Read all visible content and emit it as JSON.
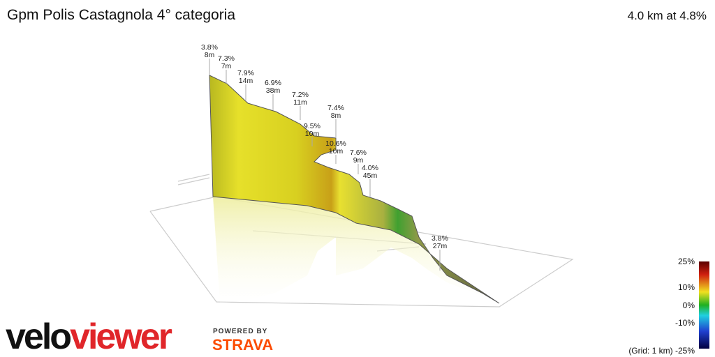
{
  "header": {
    "title": "Gpm Polis Castagnola  4° categoria",
    "summary": "4.0 km at 4.8%"
  },
  "annotations": [
    {
      "grade": "3.8%",
      "length": "8m"
    },
    {
      "grade": "7.3%",
      "length": "7m"
    },
    {
      "grade": "7.9%",
      "length": "14m"
    },
    {
      "grade": "6.9%",
      "length": "38m"
    },
    {
      "grade": "7.2%",
      "length": "11m"
    },
    {
      "grade": "7.4%",
      "length": "8m"
    },
    {
      "grade": "9.5%",
      "length": "10m"
    },
    {
      "grade": "10.6%",
      "length": "10m"
    },
    {
      "grade": "7.6%",
      "length": "9m"
    },
    {
      "grade": "4.0%",
      "length": "45m"
    },
    {
      "grade": "3.8%",
      "length": "27m"
    }
  ],
  "color_scale": {
    "labels": [
      "25%",
      "10%",
      "0%",
      "-10%"
    ],
    "grid_note": "(Grid: 1 km) -25%"
  },
  "logo": {
    "velo": "velo",
    "viewer": "viewer",
    "powered_by": "POWERED BY",
    "strava": "STRAVA"
  }
}
